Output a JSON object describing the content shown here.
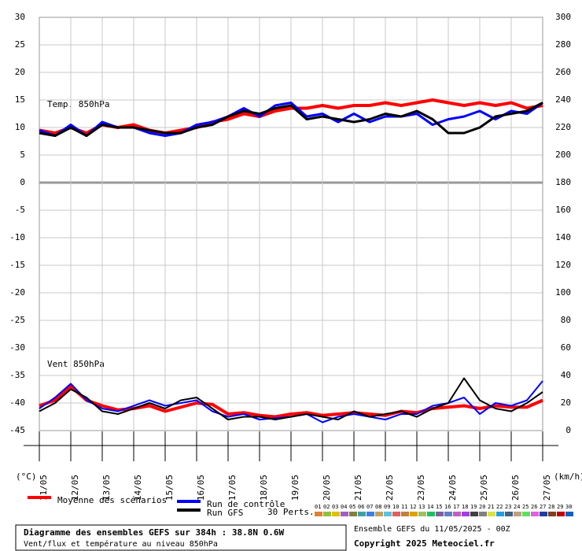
{
  "chart_data": {
    "type": "line",
    "title": "Diagramme des ensembles GEFS sur 384h : 38.8N 0.6W",
    "subtitle": "Vent/flux et température au niveau 850hPa",
    "run_label": "Ensemble GEFS du 11/05/2025 - 00Z",
    "copyright": "Copyright 2025 Meteociel.fr",
    "annotations": [
      "Temp. 850hPa",
      "Vent 850hPa"
    ],
    "y_label": "(°C)",
    "y2_label": "(km/h)",
    "categories": [
      "11/05",
      null,
      "12/05",
      null,
      "13/05",
      null,
      "14/05",
      null,
      "15/05",
      null,
      "16/05",
      null,
      "17/05",
      null,
      "18/05",
      null,
      "19/05",
      null,
      "20/05",
      null,
      "21/05",
      null,
      "22/05",
      null,
      "23/05",
      null,
      "24/05",
      null,
      "25/05",
      null,
      "26/05",
      null,
      "27/05"
    ],
    "ylim": [
      -45,
      30
    ],
    "yticks": [
      -45,
      -40,
      -35,
      -30,
      -25,
      -20,
      -15,
      -10,
      -5,
      0,
      5,
      10,
      15,
      20,
      25,
      30
    ],
    "y2lim": [
      0,
      300
    ],
    "y2ticks": [
      0,
      20,
      40,
      60,
      80,
      100,
      120,
      140,
      160,
      180,
      200,
      220,
      240,
      260,
      280,
      300
    ],
    "grid": true,
    "series": [
      {
        "name": "Moyenne des scénarios",
        "color": "#ff0000",
        "width": 4,
        "axis": "y",
        "values": [
          9.5,
          9,
          10,
          9,
          10.5,
          10,
          10.5,
          9.5,
          9,
          9.5,
          10,
          11,
          11.5,
          12.5,
          12,
          13,
          13.5,
          13.5,
          14,
          13.5,
          14,
          14,
          14.5,
          14,
          14.5,
          15,
          14.5,
          14,
          14.5,
          14,
          14.5,
          13.5,
          14
        ]
      },
      {
        "name": "Run de contrôle",
        "color": "#0000ff",
        "width": 3,
        "axis": "y",
        "values": [
          9.5,
          8.5,
          10.5,
          8.5,
          11,
          10,
          10,
          9,
          8.5,
          9,
          10.5,
          11,
          12,
          13.5,
          12,
          14,
          14.5,
          12,
          12.5,
          11,
          12.5,
          11,
          12,
          12,
          12.5,
          10.5,
          11.5,
          12,
          13,
          11.5,
          13,
          12.5,
          14.5
        ]
      },
      {
        "name": "Run GFS",
        "color": "#000000",
        "width": 3,
        "axis": "y",
        "values": [
          9,
          8.5,
          10,
          8.5,
          10.5,
          10,
          10,
          9.5,
          9,
          9,
          10,
          10.5,
          12,
          13,
          12.5,
          13.5,
          14,
          11.5,
          12,
          11.5,
          11,
          11.5,
          12.5,
          12,
          13,
          11.5,
          9,
          9,
          10,
          12,
          12.5,
          13,
          14.5
        ]
      },
      {
        "color": "#ff0000",
        "width": 4,
        "axis": "y2",
        "values": [
          18,
          22,
          32,
          22,
          18,
          15,
          16,
          18,
          14,
          17,
          20,
          19,
          12,
          13,
          11,
          10,
          12,
          13,
          11,
          12,
          13,
          12,
          11,
          14,
          13,
          16,
          17,
          18,
          16,
          18,
          17,
          17,
          22
        ]
      },
      {
        "color": "#0000ff",
        "width": 2,
        "axis": "y2",
        "values": [
          16,
          24,
          34,
          22,
          16,
          14,
          18,
          22,
          18,
          20,
          22,
          14,
          10,
          12,
          8,
          9,
          10,
          12,
          6,
          10,
          12,
          10,
          8,
          12,
          12,
          18,
          20,
          24,
          12,
          20,
          18,
          22,
          36
        ]
      },
      {
        "color": "#000000",
        "width": 2,
        "axis": "y2",
        "values": [
          14,
          20,
          30,
          24,
          14,
          12,
          16,
          20,
          16,
          22,
          24,
          16,
          8,
          10,
          10,
          8,
          10,
          12,
          10,
          8,
          14,
          10,
          12,
          14,
          10,
          16,
          20,
          38,
          22,
          16,
          14,
          20,
          28
        ]
      }
    ],
    "perturbations": {
      "label": "30 Perts.",
      "members": [
        {
          "name": "01",
          "color": "#e08030"
        },
        {
          "name": "02",
          "color": "#90c040"
        },
        {
          "name": "03",
          "color": "#e0c000"
        },
        {
          "name": "04",
          "color": "#a060c0"
        },
        {
          "name": "05",
          "color": "#808040"
        },
        {
          "name": "06",
          "color": "#40a0a0"
        },
        {
          "name": "07",
          "color": "#4080e0"
        },
        {
          "name": "08",
          "color": "#c0a060"
        },
        {
          "name": "09",
          "color": "#60c0e0"
        },
        {
          "name": "10",
          "color": "#e06060"
        },
        {
          "name": "11",
          "color": "#c08040"
        },
        {
          "name": "12",
          "color": "#e0a000"
        },
        {
          "name": "13",
          "color": "#a0c060"
        },
        {
          "name": "14",
          "color": "#20c060"
        },
        {
          "name": "15",
          "color": "#8060a0"
        },
        {
          "name": "16",
          "color": "#6080c0"
        },
        {
          "name": "17",
          "color": "#c060c0"
        },
        {
          "name": "18",
          "color": "#a040e0"
        },
        {
          "name": "19",
          "color": "#404040"
        },
        {
          "name": "20",
          "color": "#808080"
        },
        {
          "name": "21",
          "color": "#e0e040"
        },
        {
          "name": "22",
          "color": "#20a0e0"
        },
        {
          "name": "23",
          "color": "#406080"
        },
        {
          "name": "24",
          "color": "#c0a080"
        },
        {
          "name": "25",
          "color": "#60e060"
        },
        {
          "name": "26",
          "color": "#e060e0"
        },
        {
          "name": "27",
          "color": "#2040a0"
        },
        {
          "name": "28",
          "color": "#804020"
        },
        {
          "name": "29",
          "color": "#c00000"
        },
        {
          "name": "30",
          "color": "#1060c0"
        }
      ]
    }
  }
}
